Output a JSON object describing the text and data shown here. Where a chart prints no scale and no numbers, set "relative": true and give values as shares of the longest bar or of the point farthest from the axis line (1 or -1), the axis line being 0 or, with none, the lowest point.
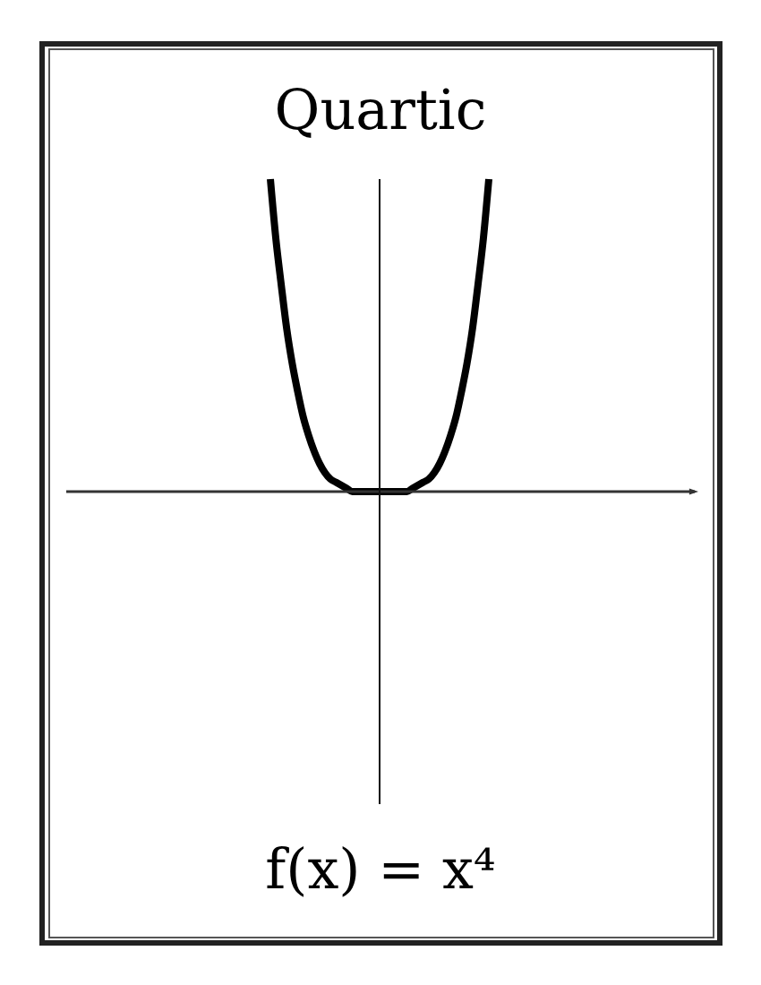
{
  "chart_data": {
    "type": "line",
    "title": "Quartic",
    "annotations": [
      "f(x) = x⁴"
    ],
    "relative": true,
    "marker": "none",
    "line_style": "solid",
    "categories": [
      null,
      null,
      null,
      null,
      null,
      null,
      null,
      null,
      null,
      null,
      null,
      null,
      null,
      null,
      null,
      null,
      null,
      null,
      null,
      null,
      null,
      null,
      null,
      null,
      null,
      null,
      null,
      null,
      null,
      null,
      null,
      null,
      null,
      null,
      null,
      null,
      null,
      null,
      null,
      null,
      null
    ],
    "series": [
      {
        "color": "#000000",
        "values": [
          1,
          0.81,
          0.66,
          0.52,
          0.41,
          0.32,
          0.24,
          0.18,
          0.13,
          0.09,
          0.06,
          0.04,
          0.03,
          0.02,
          0.01,
          0,
          0,
          0,
          0,
          0,
          0,
          0,
          0,
          0,
          0,
          0,
          0.01,
          0.02,
          0.03,
          0.04,
          0.06,
          0.09,
          0.13,
          0.18,
          0.24,
          0.32,
          0.41,
          0.52,
          0.66,
          0.81,
          1
        ]
      }
    ]
  }
}
